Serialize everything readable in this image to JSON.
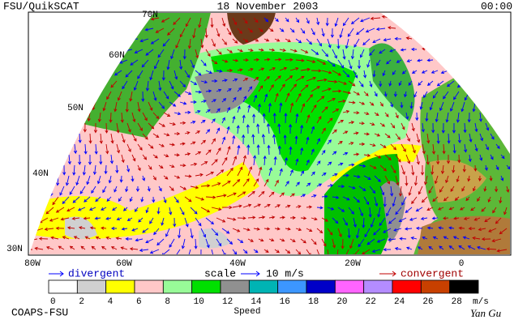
{
  "header": {
    "title": "FSU/QuikSCAT",
    "date": "18 November 2003",
    "time": "00:00"
  },
  "map": {
    "lat_labels": [
      "70N",
      "60N",
      "50N",
      "40N",
      "30N"
    ],
    "lon_labels": [
      "80W",
      "60W",
      "40W",
      "20W",
      "0"
    ]
  },
  "legend": {
    "divergent": "divergent",
    "scale": "scale",
    "scale_value": "10 m/s",
    "convergent": "convergent"
  },
  "colorbar": {
    "ticks": [
      0,
      2,
      4,
      6,
      8,
      10,
      12,
      14,
      16,
      18,
      20,
      22,
      24,
      26,
      28
    ],
    "colors": [
      "#ffffff",
      "#d0d0d0",
      "#ffff00",
      "#ffc8c8",
      "#98fb98",
      "#00e000",
      "#909090",
      "#00b4b4",
      "#3c96ff",
      "#0000c8",
      "#ff64ff",
      "#b48cff",
      "#ff0000",
      "#c84000",
      "#000000"
    ],
    "unit": "m/s",
    "label": "Speed"
  },
  "footer": {
    "credit": "COAPS-FSU",
    "signature": "Yan Gu"
  }
}
